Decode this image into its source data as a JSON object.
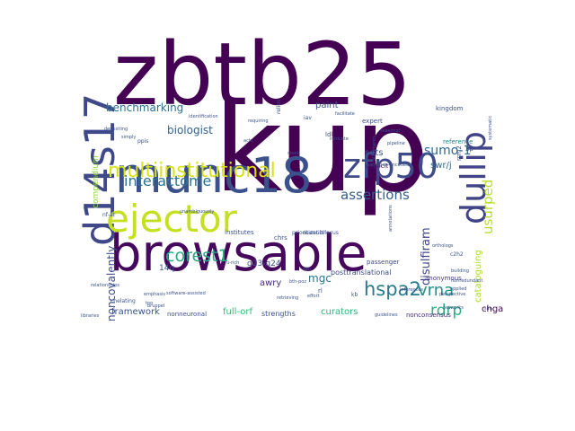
{
  "word_cloud": {
    "words": [
      {
        "text": "kup",
        "color": "#440154"
      },
      {
        "text": "zbtb25",
        "color": "#440154"
      },
      {
        "text": "browsable",
        "color": "#46085c"
      },
      {
        "text": "munc18",
        "color": "#3b518b"
      },
      {
        "text": "d14s17",
        "color": "#3f4889"
      },
      {
        "text": "ejector",
        "color": "#c5e021"
      },
      {
        "text": "dullip",
        "color": "#414487"
      },
      {
        "text": "zfp50",
        "color": "#3e4a89"
      },
      {
        "text": "multiinstitutional",
        "color": "#d8e219"
      },
      {
        "text": "corest1",
        "color": "#27ad81"
      },
      {
        "text": "interactome",
        "color": "#2c728e"
      },
      {
        "text": "assertions",
        "color": "#365d8d"
      },
      {
        "text": "hspa2",
        "color": "#2a788e"
      },
      {
        "text": "vrna",
        "color": "#21918c"
      },
      {
        "text": "rdrp",
        "color": "#29af7f"
      },
      {
        "text": "usurped",
        "color": "#b5de2b"
      },
      {
        "text": "disulfiram",
        "color": "#404688"
      },
      {
        "text": "sumo-1",
        "color": "#31688e"
      },
      {
        "text": "benchmarking",
        "color": "#2d708e"
      },
      {
        "text": "biologist",
        "color": "#34608d"
      },
      {
        "text": "noncovalently",
        "color": "#3e4c8a"
      },
      {
        "text": "cataloguing",
        "color": "#addc30"
      },
      {
        "text": "framework",
        "color": "#3b528b"
      },
      {
        "text": "curators",
        "color": "#2fb47c"
      },
      {
        "text": "full-orf",
        "color": "#35b779"
      },
      {
        "text": "q23-q24",
        "color": "#3d4e8a"
      },
      {
        "text": "awry",
        "color": "#472c7a"
      },
      {
        "text": "mgc",
        "color": "#2c738e"
      },
      {
        "text": "14q",
        "color": "#3b528b"
      },
      {
        "text": "compendium",
        "color": "#90d743"
      },
      {
        "text": "swr/j",
        "color": "#31678e"
      },
      {
        "text": "sets",
        "color": "#3b528b"
      },
      {
        "text": "paint",
        "color": "#3b528b"
      },
      {
        "text": "chga",
        "color": "#440154"
      },
      {
        "text": "posttranslational",
        "color": "#3e4a89"
      },
      {
        "text": "passenger",
        "color": "#3e4989"
      },
      {
        "text": "anonymous",
        "color": "#46337e"
      },
      {
        "text": "strengths",
        "color": "#3b528b"
      },
      {
        "text": "nonneuronal",
        "color": "#3b528b"
      },
      {
        "text": "nonconsensus",
        "color": "#472f7d"
      },
      {
        "text": "explicit",
        "color": "#48186a"
      },
      {
        "text": "expert",
        "color": "#3e4a89"
      },
      {
        "text": "reference",
        "color": "#25848e"
      },
      {
        "text": "kingdom",
        "color": "#3b528b"
      },
      {
        "text": "institutes",
        "color": "#3b528b"
      },
      {
        "text": "chrs",
        "color": "#3b528b"
      },
      {
        "text": "prioritization",
        "color": "#3b528b"
      },
      {
        "text": "multilocus",
        "color": "#3b528b"
      },
      {
        "text": "chelating",
        "color": "#3b528b"
      },
      {
        "text": "ppis",
        "color": "#3b528b"
      },
      {
        "text": "nf-at",
        "color": "#3b528b"
      },
      {
        "text": "iav",
        "color": "#3b528b"
      },
      {
        "text": "ldl",
        "color": "#3b528b"
      },
      {
        "text": "rrm2",
        "color": "#3b528b"
      },
      {
        "text": "relies",
        "color": "#3b528b"
      },
      {
        "text": "c2h2",
        "color": "#3b528b"
      },
      {
        "text": "tpo",
        "color": "#3b528b"
      },
      {
        "text": "libraries",
        "color": "#3b528b"
      },
      {
        "text": "guidelines",
        "color": "#3b528b"
      },
      {
        "text": "networks",
        "color": "#3b528b"
      },
      {
        "text": "retrieving",
        "color": "#3b528b"
      },
      {
        "text": "software-assisted",
        "color": "#3b528b"
      },
      {
        "text": "unambiguously",
        "color": "#3b528b"
      },
      {
        "text": "u-rich",
        "color": "#3b528b"
      },
      {
        "text": "effort",
        "color": "#3b528b"
      },
      {
        "text": "applied",
        "color": "#3b528b"
      },
      {
        "text": "sim",
        "color": "#3b528b"
      },
      {
        "text": "2p",
        "color": "#3b528b"
      },
      {
        "text": "rl",
        "color": "#3b528b"
      },
      {
        "text": "kb",
        "color": "#3b528b"
      },
      {
        "text": "depositing",
        "color": "#3b528b"
      },
      {
        "text": "simply",
        "color": "#3b528b"
      },
      {
        "text": "emphasis",
        "color": "#3b528b"
      },
      {
        "text": "bruppel",
        "color": "#3b528b"
      },
      {
        "text": "building",
        "color": "#3b528b"
      },
      {
        "text": "seasonal",
        "color": "#3b528b"
      },
      {
        "text": "pipeline",
        "color": "#3b528b"
      },
      {
        "text": "facilitate",
        "color": "#3b528b"
      },
      {
        "text": "identification",
        "color": "#3b528b"
      },
      {
        "text": "intricate",
        "color": "#3b528b"
      },
      {
        "text": "requiring",
        "color": "#3b528b"
      },
      {
        "text": "alignments",
        "color": "#3b528b"
      },
      {
        "text": "inferences",
        "color": "#3b528b"
      },
      {
        "text": "nonredundant",
        "color": "#3b528b"
      },
      {
        "text": "bth-poz",
        "color": "#3b528b"
      },
      {
        "text": "dual",
        "color": "#3b528b"
      },
      {
        "text": "acts",
        "color": "#3b528b"
      },
      {
        "text": "ppi",
        "color": "#3b528b"
      },
      {
        "text": "stock",
        "color": "#3b528b"
      },
      {
        "text": "systematic",
        "color": "#3b528b"
      },
      {
        "text": "annotations",
        "color": "#3b528b"
      },
      {
        "text": "relationships",
        "color": "#3b528b"
      },
      {
        "text": "perspective",
        "color": "#3b528b"
      },
      {
        "text": "pathogen-encoded",
        "color": "#3b528b"
      },
      {
        "text": "orthologs",
        "color": "#3b528b"
      }
    ]
  }
}
